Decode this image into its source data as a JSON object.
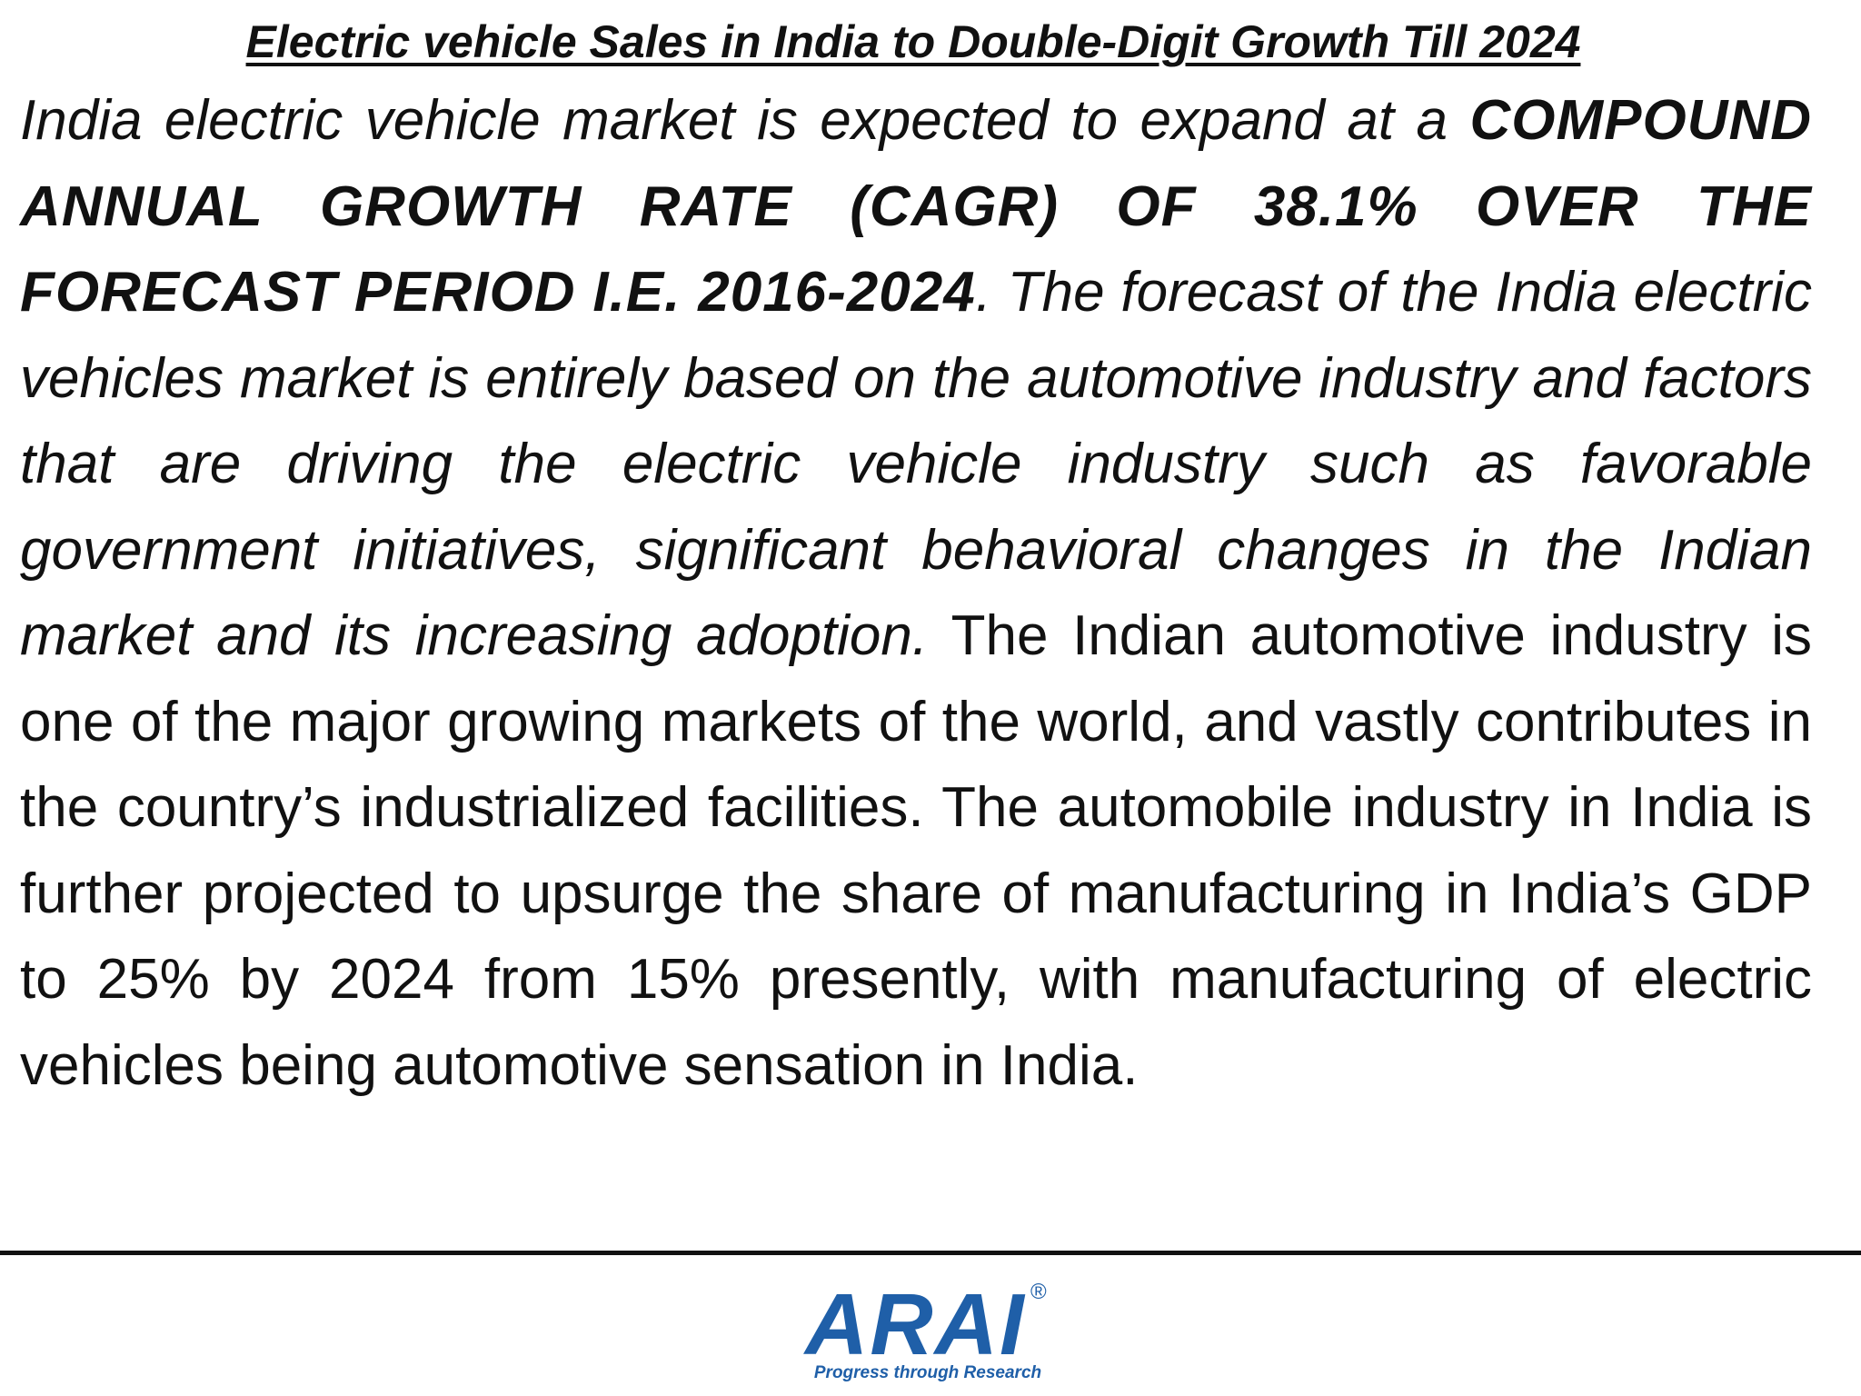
{
  "title": "Electric vehicle Sales in India to  Double-Digit Growth Till 2024",
  "paragraph": {
    "intro_italic": "India electric vehicle market is expected to expand at a",
    "emphasis_caps": "COMPOUND ANNUAL GROWTH RATE (CAGR) OF 38.1% OVER THE FORECAST PERIOD I.E. 2016-2024",
    "middle_italic": ". The forecast of the India electric vehicles market is entirely based on the automotive industry and factors that are driving the electric vehicle industry such as favorable government initiatives, significant behavioral changes in the Indian market and its increasing adoption.",
    "closing_regular": "The Indian automotive industry is one of the major growing markets of the world, and vastly contributes in the country’s industrialized facilities. The automobile industry in India is further projected to upsurge the share of manufacturing in India’s GDP to 25% by 2024 from 15% presently, with manufacturing of electric vehicles being automotive sensation in India."
  },
  "logo": {
    "name": "ARAI",
    "registered_mark": "®",
    "tagline": "Progress through Research",
    "color": "#1f5fa8"
  }
}
